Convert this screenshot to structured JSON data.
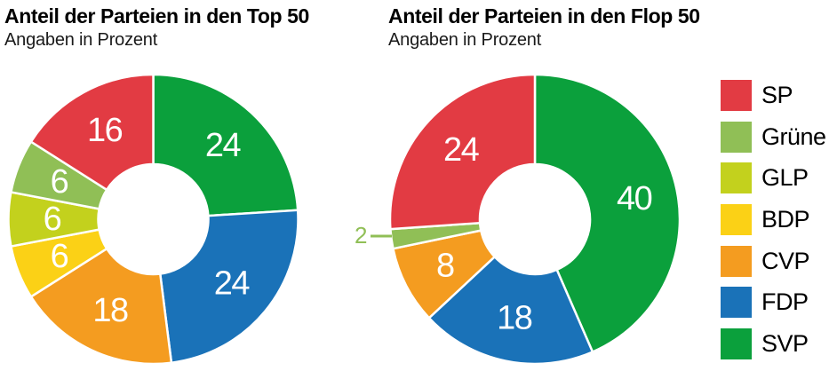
{
  "palette": {
    "SP": "#e23b43",
    "Grüne": "#90bf56",
    "GLP": "#c3d11d",
    "BDP": "#fbd116",
    "CVP": "#f49c20",
    "FDP": "#1a72b8",
    "SVP": "#0ba03c"
  },
  "chart_data": [
    {
      "type": "pie",
      "shape": "donut",
      "title": "Anteil der Parteien in den Top 50",
      "subtitle": "Angaben in Prozent",
      "unit": "percent",
      "categories": [
        "SVP",
        "FDP",
        "CVP",
        "BDP",
        "GLP",
        "Grüne",
        "SP"
      ],
      "values": [
        24,
        24,
        18,
        6,
        6,
        6,
        16
      ],
      "start_angle": "12-oclock",
      "direction": "clockwise",
      "value_labels": "inside-white",
      "outside_labels": []
    },
    {
      "type": "pie",
      "shape": "donut",
      "title": "Anteil der Parteien in den Flop 50",
      "subtitle": "Angaben in Prozent",
      "unit": "percent",
      "categories": [
        "SVP",
        "FDP",
        "CVP",
        "Grüne",
        "SP"
      ],
      "values": [
        40,
        18,
        8,
        2,
        24
      ],
      "start_angle": "12-oclock",
      "direction": "clockwise",
      "value_labels": "inside-white",
      "outside_labels": [
        "Grüne"
      ]
    }
  ],
  "legend": {
    "position": "right",
    "items": [
      {
        "party": "SP",
        "label": "SP"
      },
      {
        "party": "Grüne",
        "label": "Grüne"
      },
      {
        "party": "GLP",
        "label": "GLP"
      },
      {
        "party": "BDP",
        "label": "BDP"
      },
      {
        "party": "CVP",
        "label": "CVP"
      },
      {
        "party": "FDP",
        "label": "FDP"
      },
      {
        "party": "SVP",
        "label": "SVP"
      }
    ]
  }
}
